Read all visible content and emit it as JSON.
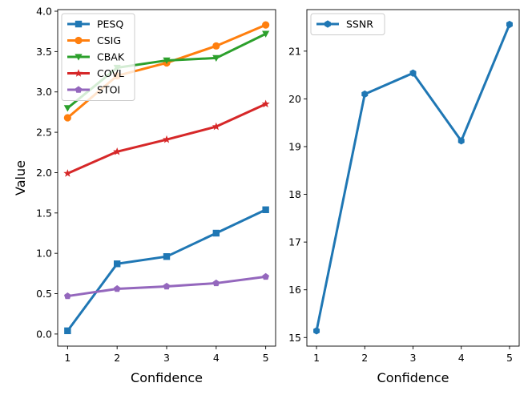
{
  "chart_data": [
    {
      "type": "line",
      "xlabel": "Confidence",
      "ylabel": "Value",
      "x": [
        1,
        2,
        3,
        4,
        5
      ],
      "xlim": [
        0.8,
        5.2
      ],
      "ylim": [
        -0.15,
        4.02
      ],
      "xticks": [
        "1",
        "2",
        "3",
        "4",
        "5"
      ],
      "yticks": [
        "0.0",
        "0.5",
        "1.0",
        "1.5",
        "2.0",
        "2.5",
        "3.0",
        "3.5",
        "4.0"
      ],
      "legend": "upper-left",
      "series": [
        {
          "name": "PESQ",
          "marker": "square",
          "color": "#1f77b4",
          "values": [
            0.04,
            0.87,
            0.96,
            1.25,
            1.54
          ]
        },
        {
          "name": "CSIG",
          "marker": "circle",
          "color": "#ff7f0e",
          "values": [
            2.68,
            3.2,
            3.36,
            3.57,
            3.83
          ]
        },
        {
          "name": "CBAK",
          "marker": "triangle-down",
          "color": "#2ca02c",
          "values": [
            2.8,
            3.3,
            3.39,
            3.42,
            3.72
          ]
        },
        {
          "name": "COVL",
          "marker": "star",
          "color": "#d62728",
          "values": [
            1.99,
            2.26,
            2.41,
            2.57,
            2.85
          ]
        },
        {
          "name": "STOI",
          "marker": "pentagon",
          "color": "#9467bd",
          "values": [
            0.47,
            0.56,
            0.59,
            0.63,
            0.71
          ]
        }
      ]
    },
    {
      "type": "line",
      "xlabel": "Confidence",
      "ylabel": "",
      "x": [
        1,
        2,
        3,
        4,
        5
      ],
      "xlim": [
        0.8,
        5.2
      ],
      "ylim": [
        14.82,
        21.87
      ],
      "xticks": [
        "1",
        "2",
        "3",
        "4",
        "5"
      ],
      "yticks": [
        "15",
        "16",
        "17",
        "18",
        "19",
        "20",
        "21"
      ],
      "legend": "upper-left",
      "series": [
        {
          "name": "SSNR",
          "marker": "hexagon",
          "color": "#1f77b4",
          "values": [
            15.14,
            20.1,
            20.54,
            19.12,
            21.56
          ]
        }
      ]
    }
  ]
}
